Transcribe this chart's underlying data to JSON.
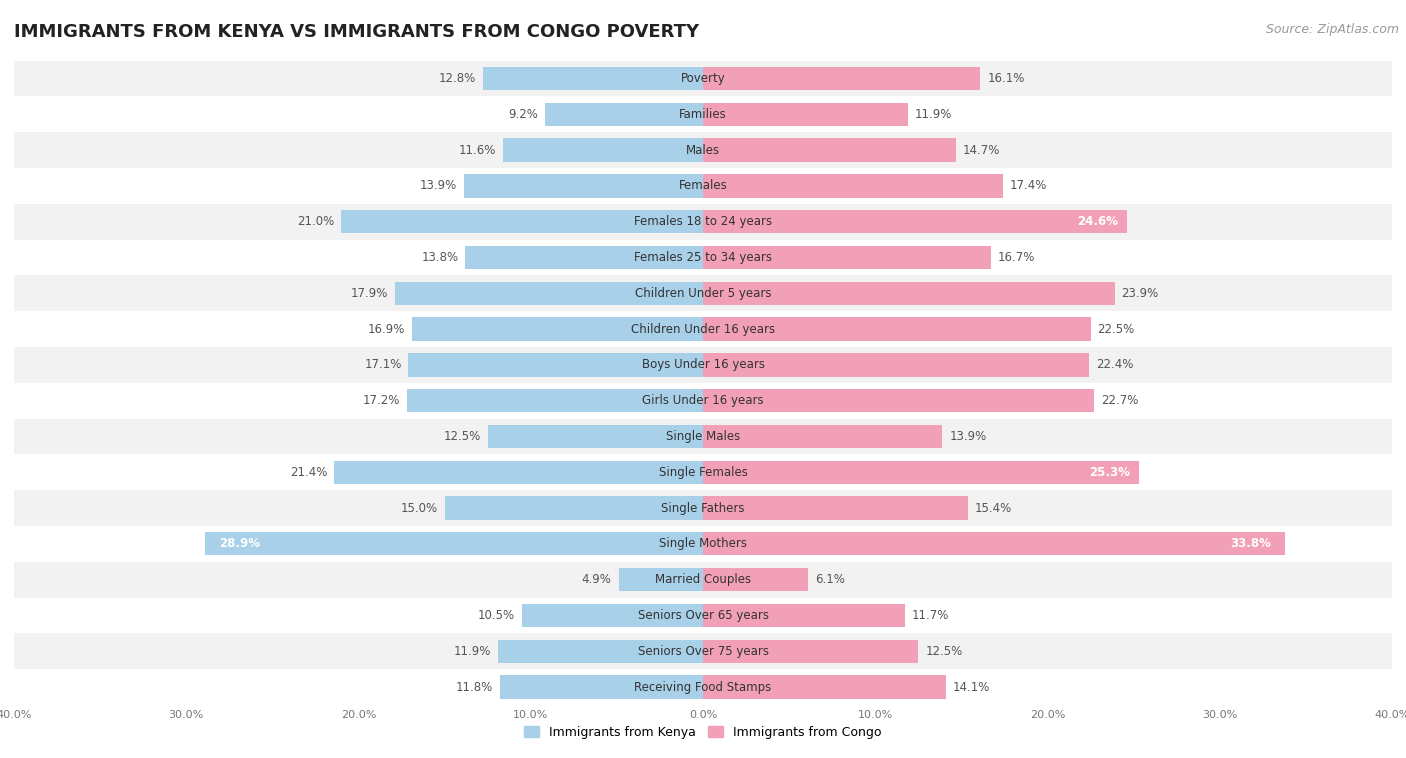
{
  "title": "IMMIGRANTS FROM KENYA VS IMMIGRANTS FROM CONGO POVERTY",
  "source": "Source: ZipAtlas.com",
  "categories": [
    "Poverty",
    "Families",
    "Males",
    "Females",
    "Females 18 to 24 years",
    "Females 25 to 34 years",
    "Children Under 5 years",
    "Children Under 16 years",
    "Boys Under 16 years",
    "Girls Under 16 years",
    "Single Males",
    "Single Females",
    "Single Fathers",
    "Single Mothers",
    "Married Couples",
    "Seniors Over 65 years",
    "Seniors Over 75 years",
    "Receiving Food Stamps"
  ],
  "kenya_values": [
    12.8,
    9.2,
    11.6,
    13.9,
    21.0,
    13.8,
    17.9,
    16.9,
    17.1,
    17.2,
    12.5,
    21.4,
    15.0,
    28.9,
    4.9,
    10.5,
    11.9,
    11.8
  ],
  "congo_values": [
    16.1,
    11.9,
    14.7,
    17.4,
    24.6,
    16.7,
    23.9,
    22.5,
    22.4,
    22.7,
    13.9,
    25.3,
    15.4,
    33.8,
    6.1,
    11.7,
    12.5,
    14.1
  ],
  "kenya_color": "#a8d0e8",
  "congo_color": "#f2a0b8",
  "kenya_label": "Immigrants from Kenya",
  "congo_label": "Immigrants from Congo",
  "xlim": 40.0,
  "row_colors": [
    "#f2f2f2",
    "#ffffff"
  ],
  "title_fontsize": 13,
  "source_fontsize": 9,
  "label_fontsize": 8.5,
  "value_fontsize": 8.5,
  "bar_height": 0.65,
  "background_color": "#ffffff"
}
